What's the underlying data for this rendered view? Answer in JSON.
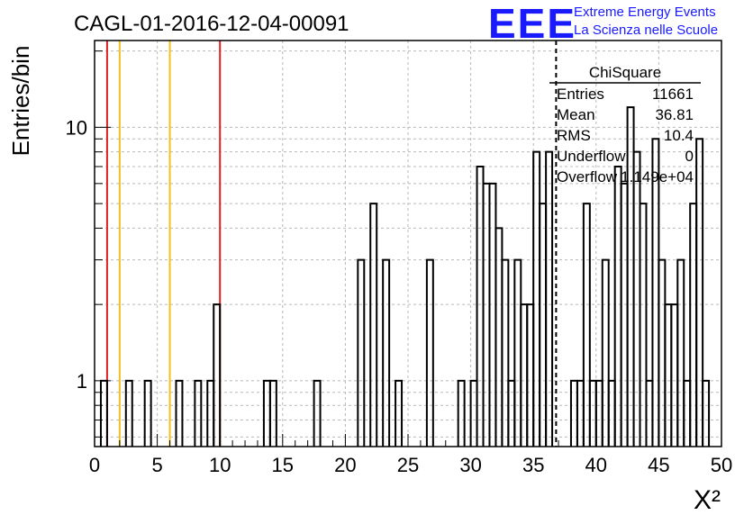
{
  "header": {
    "run_title": "CAGL-01-2016-12-04-00091",
    "logo_text": "EEE",
    "logo_line1": "Extreme Energy Events",
    "logo_line2": "La Scienza nelle Scuole"
  },
  "stats": {
    "title": "ChiSquare",
    "rows": [
      {
        "label": "Entries",
        "value": "11661"
      },
      {
        "label": "Mean",
        "value": "36.81"
      },
      {
        "label": "RMS",
        "value": "10.4"
      },
      {
        "label": "Underflow",
        "value": "0"
      },
      {
        "label": "Overflow",
        "value": "1.149e+04"
      }
    ]
  },
  "colors": {
    "red_line": "#dd2222",
    "yellow_line": "#f0c020",
    "histogram": "#000000",
    "logo": "#1a1aff"
  },
  "chart_data": {
    "type": "bar",
    "xlabel": "X²",
    "ylabel": "Entries/bin",
    "xlim": [
      0,
      50
    ],
    "ylim": [
      0.55,
      22
    ],
    "log_y": true,
    "grid": true,
    "bin_width": 0.5,
    "x_ticks": [
      0,
      5,
      10,
      15,
      20,
      25,
      30,
      35,
      40,
      45,
      50
    ],
    "y_ticks_labeled": [
      1,
      10
    ],
    "bins": [
      {
        "x": 0.5,
        "y": 1
      },
      {
        "x": 2.5,
        "y": 1
      },
      {
        "x": 4.0,
        "y": 1
      },
      {
        "x": 6.5,
        "y": 1
      },
      {
        "x": 8.0,
        "y": 1
      },
      {
        "x": 9.0,
        "y": 1
      },
      {
        "x": 9.5,
        "y": 2
      },
      {
        "x": 13.5,
        "y": 1
      },
      {
        "x": 14.0,
        "y": 1
      },
      {
        "x": 17.5,
        "y": 1
      },
      {
        "x": 21.0,
        "y": 3
      },
      {
        "x": 22.0,
        "y": 5
      },
      {
        "x": 23.0,
        "y": 3
      },
      {
        "x": 24.0,
        "y": 1
      },
      {
        "x": 26.5,
        "y": 3
      },
      {
        "x": 29.0,
        "y": 1
      },
      {
        "x": 30.0,
        "y": 1
      },
      {
        "x": 30.5,
        "y": 7
      },
      {
        "x": 31.0,
        "y": 6
      },
      {
        "x": 31.5,
        "y": 6
      },
      {
        "x": 32.0,
        "y": 4
      },
      {
        "x": 32.5,
        "y": 3
      },
      {
        "x": 33.0,
        "y": 1
      },
      {
        "x": 33.5,
        "y": 3
      },
      {
        "x": 34.0,
        "y": 2
      },
      {
        "x": 34.5,
        "y": 2
      },
      {
        "x": 35.0,
        "y": 8
      },
      {
        "x": 35.5,
        "y": 5
      },
      {
        "x": 36.0,
        "y": 8
      },
      {
        "x": 38.0,
        "y": 1
      },
      {
        "x": 38.5,
        "y": 1
      },
      {
        "x": 39.0,
        "y": 5
      },
      {
        "x": 39.5,
        "y": 1
      },
      {
        "x": 40.0,
        "y": 1
      },
      {
        "x": 40.5,
        "y": 3
      },
      {
        "x": 41.0,
        "y": 1
      },
      {
        "x": 41.5,
        "y": 7
      },
      {
        "x": 42.0,
        "y": 6
      },
      {
        "x": 42.5,
        "y": 12
      },
      {
        "x": 43.0,
        "y": 8
      },
      {
        "x": 43.5,
        "y": 5
      },
      {
        "x": 44.0,
        "y": 1
      },
      {
        "x": 44.5,
        "y": 9
      },
      {
        "x": 45.0,
        "y": 3
      },
      {
        "x": 45.5,
        "y": 2
      },
      {
        "x": 46.0,
        "y": 2
      },
      {
        "x": 46.5,
        "y": 3
      },
      {
        "x": 47.0,
        "y": 1
      },
      {
        "x": 47.5,
        "y": 5
      },
      {
        "x": 48.0,
        "y": 9
      },
      {
        "x": 48.5,
        "y": 1
      }
    ],
    "reference_lines": [
      {
        "x": 1.0,
        "color": "red"
      },
      {
        "x": 2.0,
        "color": "yellow"
      },
      {
        "x": 6.0,
        "color": "yellow"
      },
      {
        "x": 10.0,
        "color": "red"
      }
    ],
    "mean_line": {
      "x": 36.81,
      "style": "dashed"
    }
  }
}
